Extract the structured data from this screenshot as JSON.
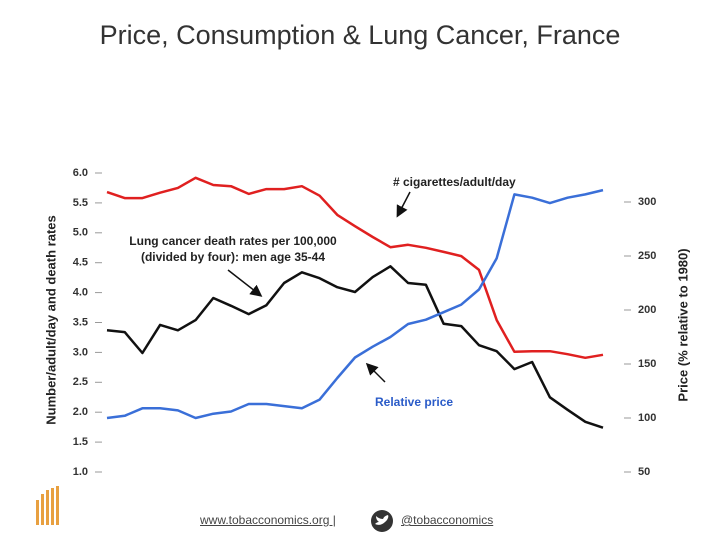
{
  "chart_data": {
    "type": "line",
    "title": "Price, Consumption & Lung Cancer, France",
    "y_label": "Number/adult/day and death rates",
    "y2_label": "Price (% relative to 1980)",
    "categories": [
      null,
      null,
      null,
      null,
      null,
      null,
      null,
      null,
      null,
      null,
      null,
      null,
      null,
      null,
      null,
      null,
      null,
      null,
      null,
      null,
      null,
      null,
      null,
      null,
      null,
      null,
      null,
      null,
      null
    ],
    "ylim": [
      1.0,
      6.0
    ],
    "yticks": [
      {
        "value": 1,
        "label": "1.0"
      },
      {
        "value": 1.5,
        "label": "1.5"
      },
      {
        "value": 2,
        "label": "2.0"
      },
      {
        "value": 2.5,
        "label": "2.5"
      },
      {
        "value": 3,
        "label": "3.0"
      },
      {
        "value": 3.5,
        "label": "3.5"
      },
      {
        "value": 4,
        "label": "4.0"
      },
      {
        "value": 4.5,
        "label": "4.5"
      },
      {
        "value": 5,
        "label": "5.0"
      },
      {
        "value": 5.5,
        "label": "5.5"
      },
      {
        "value": 6,
        "label": "6.0"
      }
    ],
    "y2lim": [
      50,
      300
    ],
    "y2ticks": [
      50,
      100,
      150,
      200,
      250,
      300
    ],
    "series": [
      {
        "name": "# cigarettes/adult/day",
        "color": "#e02020",
        "values": [
          5.68,
          5.58,
          5.58,
          5.67,
          5.75,
          5.92,
          5.8,
          5.78,
          5.65,
          5.73,
          5.73,
          5.78,
          5.62,
          5.3,
          5.11,
          4.93,
          4.76,
          4.8,
          4.75,
          4.68,
          4.61,
          4.38,
          3.54,
          3.01,
          3.02,
          3.02,
          2.97,
          2.91,
          2.96
        ]
      },
      {
        "name": "Lung cancer death rates per 100,000 (divided by four): men age 35-44",
        "color": "#111111",
        "values": [
          3.37,
          3.34,
          2.99,
          3.46,
          3.37,
          3.54,
          3.91,
          3.78,
          3.64,
          3.79,
          4.16,
          4.34,
          4.24,
          4.09,
          4.01,
          4.26,
          4.44,
          4.16,
          4.13,
          3.48,
          3.44,
          3.12,
          3.02,
          2.72,
          2.84,
          2.25,
          2.04,
          1.84,
          1.74
        ]
      },
      {
        "name": "Relative price",
        "color": "#3a6fd8",
        "axis": "y2",
        "values": [
          100,
          102,
          109,
          109,
          107,
          100,
          104,
          106,
          113,
          113,
          111,
          109,
          117,
          137,
          156,
          166,
          175,
          187,
          191,
          198,
          205,
          219,
          248,
          307,
          304,
          299,
          304,
          307,
          311
        ]
      }
    ]
  },
  "footer": {
    "website": "www.tobacconomics.org |",
    "handle": "@tobacconomics"
  }
}
